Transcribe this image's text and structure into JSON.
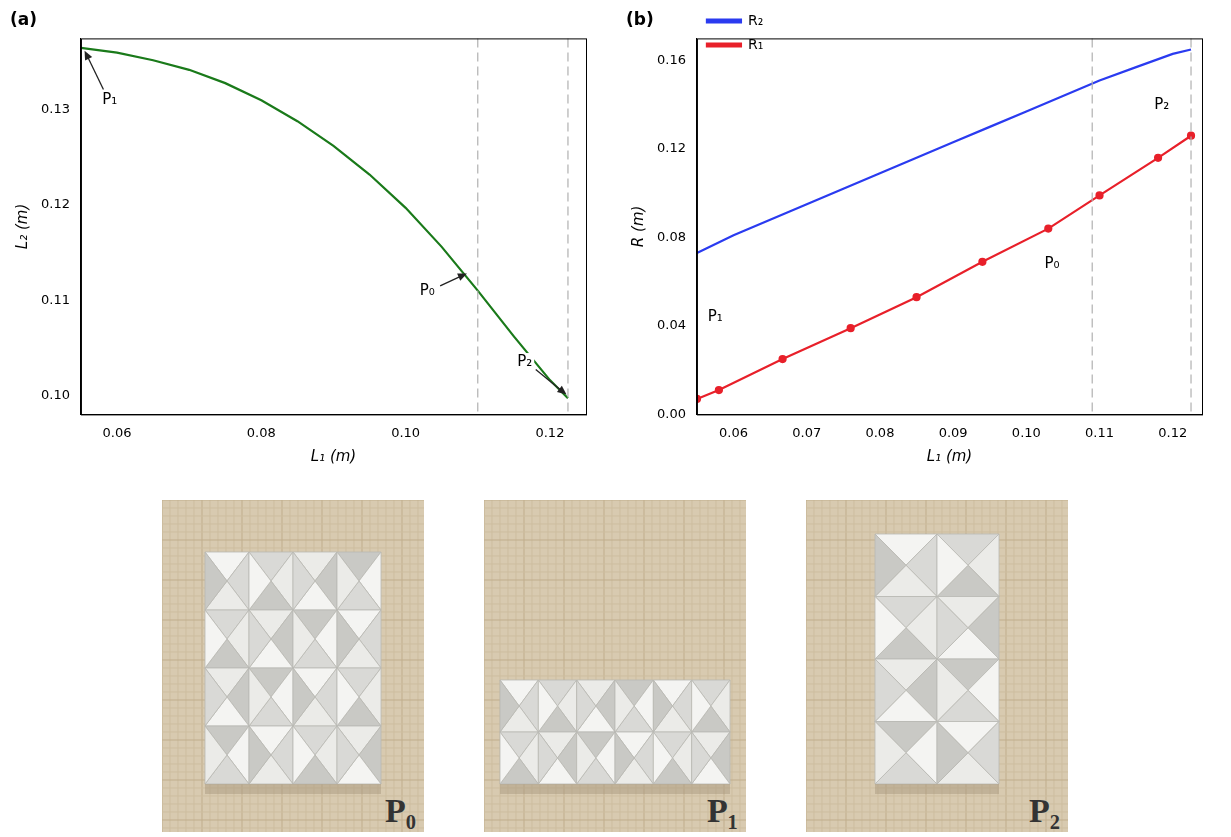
{
  "chart_data": [
    {
      "type": "line",
      "title": "(a)",
      "x_label": "L₁ (m)",
      "y_label": "L₂ (m)",
      "xlim": [
        0.055,
        0.125
      ],
      "xticks": [
        {
          "value": 0.06,
          "label": "0.06"
        },
        {
          "value": 0.08,
          "label": "0.08"
        },
        {
          "value": 0.1,
          "label": "0.10"
        },
        {
          "value": 0.12,
          "label": "0.12"
        }
      ],
      "ylim": [
        0.098,
        0.1375
      ],
      "yticks": [
        {
          "value": 0.1,
          "label": "0.10"
        },
        {
          "value": 0.11,
          "label": "0.11"
        },
        {
          "value": 0.12,
          "label": "0.12"
        },
        {
          "value": 0.13,
          "label": "0.13"
        }
      ],
      "grid": false,
      "series": [
        {
          "name": "L₂",
          "color": "#1a7a1a",
          "marker": "none",
          "x": [
            0.055,
            0.06,
            0.065,
            0.07,
            0.075,
            0.08,
            0.085,
            0.09,
            0.095,
            0.1,
            0.105,
            0.11,
            0.115,
            0.12,
            0.1225
          ],
          "values": [
            0.1365,
            0.136,
            0.1352,
            0.1342,
            0.1328,
            0.131,
            0.1288,
            0.1262,
            0.1232,
            0.1197,
            0.1156,
            0.111,
            0.1062,
            0.1016,
            0.0997
          ]
        }
      ],
      "vlines": [
        0.11,
        0.1225
      ],
      "annotations": [
        {
          "text": "P₁",
          "x": 0.059,
          "y": 0.131,
          "arrow_to": [
            0.0555,
            0.1362
          ]
        },
        {
          "text": "P₀",
          "x": 0.103,
          "y": 0.111,
          "arrow_to": [
            0.1085,
            0.1128
          ]
        },
        {
          "text": "P₂",
          "x": 0.1165,
          "y": 0.1035,
          "arrow_to": [
            0.1223,
            0.1001
          ]
        }
      ]
    },
    {
      "type": "line",
      "title": "(b)",
      "x_label": "L₁ (m)",
      "y_label": "R (m)",
      "xlim": [
        0.055,
        0.124
      ],
      "xticks": [
        {
          "value": 0.06,
          "label": "0.06"
        },
        {
          "value": 0.07,
          "label": "0.07"
        },
        {
          "value": 0.08,
          "label": "0.08"
        },
        {
          "value": 0.09,
          "label": "0.09"
        },
        {
          "value": 0.1,
          "label": "0.10"
        },
        {
          "value": 0.11,
          "label": "0.11"
        },
        {
          "value": 0.12,
          "label": "0.12"
        }
      ],
      "ylim": [
        0,
        0.17
      ],
      "yticks": [
        {
          "value": 0,
          "label": "0.00"
        },
        {
          "value": 0.04,
          "label": "0.04"
        },
        {
          "value": 0.08,
          "label": "0.08"
        },
        {
          "value": 0.12,
          "label": "0.12"
        },
        {
          "value": 0.16,
          "label": "0.16"
        }
      ],
      "grid": false,
      "legend": "upper left",
      "series": [
        {
          "name": "R₂",
          "color": "#2a3bf0",
          "marker": "none",
          "x": [
            0.055,
            0.06,
            0.065,
            0.07,
            0.075,
            0.08,
            0.085,
            0.09,
            0.095,
            0.1,
            0.105,
            0.11,
            0.115,
            0.12,
            0.1225
          ],
          "values": [
            0.073,
            0.081,
            0.088,
            0.095,
            0.102,
            0.109,
            0.116,
            0.123,
            0.13,
            0.137,
            0.144,
            0.151,
            0.157,
            0.163,
            0.165
          ]
        },
        {
          "name": "R₁",
          "color": "#e8202a",
          "marker": "circle",
          "x": [
            0.055,
            0.058,
            0.0667,
            0.076,
            0.085,
            0.094,
            0.103,
            0.11,
            0.118,
            0.1225
          ],
          "values": [
            0.007,
            0.011,
            0.025,
            0.039,
            0.053,
            0.069,
            0.084,
            0.099,
            0.116,
            0.126
          ]
        }
      ],
      "vlines": [
        0.109,
        0.1225
      ],
      "annotations": [
        {
          "text": "P₁",
          "x": 0.0575,
          "y": 0.044
        },
        {
          "text": "P₀",
          "x": 0.1035,
          "y": 0.068
        },
        {
          "text": "P₂",
          "x": 0.1185,
          "y": 0.14
        }
      ]
    }
  ],
  "photos": [
    {
      "label": "P₀"
    },
    {
      "label": "P₁"
    },
    {
      "label": "P₂"
    }
  ]
}
